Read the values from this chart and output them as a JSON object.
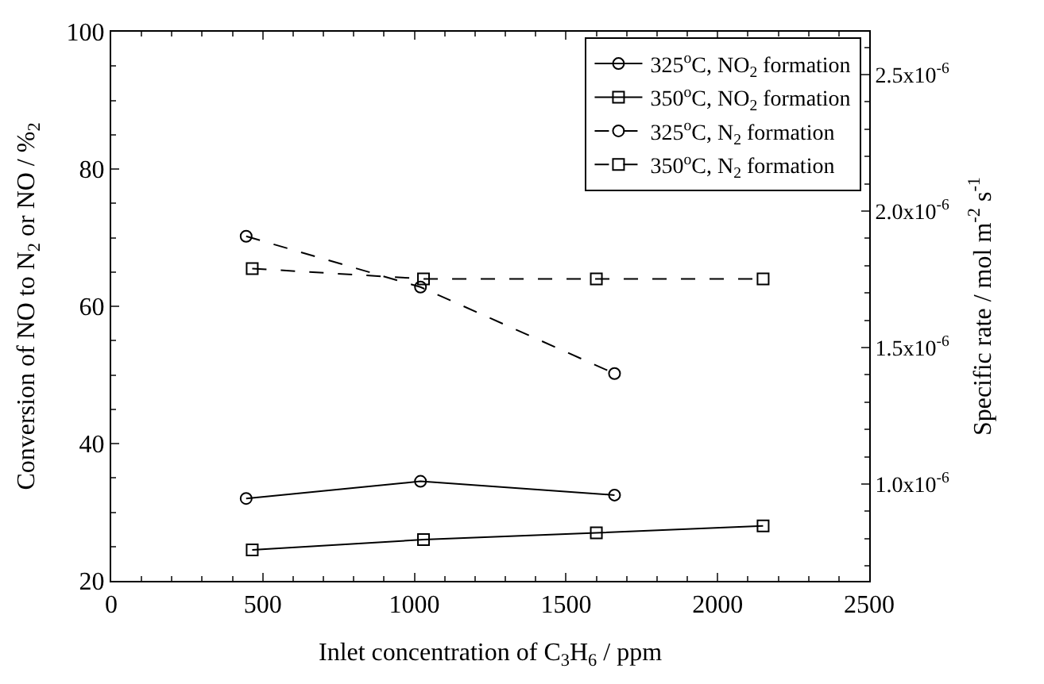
{
  "chart_data": {
    "type": "line",
    "xlabel": "Inlet concentration of C$_{3}$H$_{6}$ / ppm",
    "ylabel": "Conversion of NO to N$_{2}$ or NO / %$_{2}$",
    "y2label": "Specific rate / mol m$^{-2}$ s$^{-1}$",
    "xlim": [
      0,
      2500
    ],
    "xticks": [
      0,
      500,
      1000,
      1500,
      2000,
      2500
    ],
    "ylim": [
      20,
      100
    ],
    "yticks": [
      20,
      40,
      60,
      80,
      100
    ],
    "y2lim": [
      6.45e-07,
      2.657e-06
    ],
    "y2ticks": [
      {
        "value": 1e-06,
        "label": "1.0x10$^{-6}$"
      },
      {
        "value": 1.5e-06,
        "label": "1.5x10$^{-6}$"
      },
      {
        "value": 2e-06,
        "label": "2.0x10$^{-6}$"
      },
      {
        "value": 2.5e-06,
        "label": "2.5x10$^{-6}$"
      }
    ],
    "legend": "top right",
    "series": [
      {
        "name": "325$^{o}$C, NO$_{2}$ formation",
        "color": "#000000",
        "marker": "circle",
        "line_style": "solid",
        "x": [
          445,
          1020,
          1660
        ],
        "values": [
          32,
          34.5,
          32.5
        ]
      },
      {
        "name": "350$^{o}$C, NO$_{2}$ formation",
        "color": "#000000",
        "marker": "square",
        "line_style": "solid",
        "x": [
          465,
          1030,
          1600,
          2150
        ],
        "values": [
          24.5,
          26,
          27,
          28
        ]
      },
      {
        "name": "325$^{o}$C, N$_{2}$ formation",
        "color": "#000000",
        "marker": "circle",
        "line_style": "dashed",
        "x": [
          445,
          1020,
          1660
        ],
        "values": [
          70.2,
          62.8,
          50.2
        ]
      },
      {
        "name": "350$^{o}$C, N$_{2}$ formation",
        "color": "#000000",
        "marker": "square",
        "line_style": "dashed",
        "x": [
          465,
          1030,
          1600,
          2150
        ],
        "values": [
          65.5,
          64,
          64,
          64
        ]
      }
    ]
  }
}
